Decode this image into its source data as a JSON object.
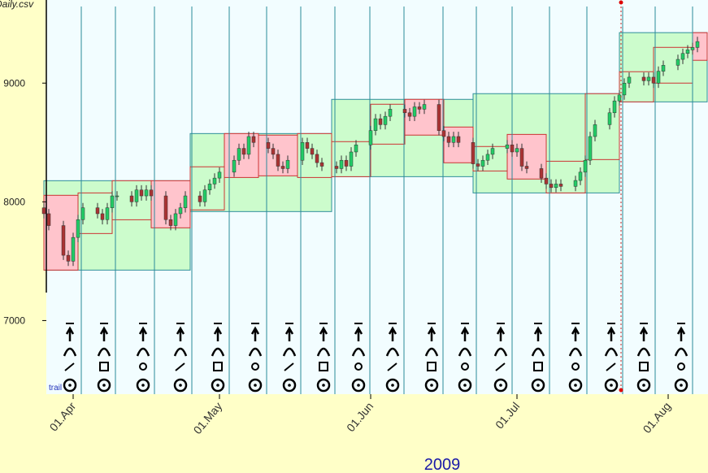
{
  "chart_data": {
    "type": "candlestick",
    "title": "Daily.csv",
    "annotation": "trail",
    "x_label": "2009",
    "xlim": [
      "2009-03-26",
      "2009-08-09"
    ],
    "ylim": [
      6380,
      9700
    ],
    "yticks": [
      7000,
      8000,
      9000
    ],
    "xticks": [
      {
        "value": "2009-04-01",
        "label": "01.Apr"
      },
      {
        "value": "2009-05-01",
        "label": "01.May"
      },
      {
        "value": "2009-06-01",
        "label": "01.Jun"
      },
      {
        "value": "2009-07-01",
        "label": "01.Jul"
      },
      {
        "value": "2009-08-01",
        "label": "01.Aug"
      }
    ],
    "up_color": "#22cc66",
    "down_color": "#aa3333",
    "x": [
      "2009-03-26",
      "2009-03-27",
      "2009-03-30",
      "2009-03-31",
      "2009-04-01",
      "2009-04-02",
      "2009-04-03",
      "2009-04-06",
      "2009-04-07",
      "2009-04-08",
      "2009-04-09",
      "2009-04-10",
      "2009-04-13",
      "2009-04-14",
      "2009-04-15",
      "2009-04-16",
      "2009-04-17",
      "2009-04-20",
      "2009-04-21",
      "2009-04-22",
      "2009-04-23",
      "2009-04-24",
      "2009-04-27",
      "2009-04-28",
      "2009-04-29",
      "2009-04-30",
      "2009-05-01",
      "2009-05-04",
      "2009-05-05",
      "2009-05-06",
      "2009-05-07",
      "2009-05-08",
      "2009-05-11",
      "2009-05-12",
      "2009-05-13",
      "2009-05-14",
      "2009-05-15",
      "2009-05-18",
      "2009-05-19",
      "2009-05-20",
      "2009-05-21",
      "2009-05-22",
      "2009-05-25",
      "2009-05-26",
      "2009-05-27",
      "2009-05-28",
      "2009-05-29",
      "2009-06-01",
      "2009-06-02",
      "2009-06-03",
      "2009-06-04",
      "2009-06-05",
      "2009-06-08",
      "2009-06-09",
      "2009-06-10",
      "2009-06-11",
      "2009-06-12",
      "2009-06-15",
      "2009-06-16",
      "2009-06-17",
      "2009-06-18",
      "2009-06-19",
      "2009-06-22",
      "2009-06-23",
      "2009-06-24",
      "2009-06-25",
      "2009-06-26",
      "2009-06-29",
      "2009-06-30",
      "2009-07-01",
      "2009-07-02",
      "2009-07-03",
      "2009-07-06",
      "2009-07-07",
      "2009-07-08",
      "2009-07-09",
      "2009-07-10",
      "2009-07-13",
      "2009-07-14",
      "2009-07-15",
      "2009-07-16",
      "2009-07-17",
      "2009-07-20",
      "2009-07-21",
      "2009-07-22",
      "2009-07-23",
      "2009-07-24",
      "2009-07-27",
      "2009-07-28",
      "2009-07-29",
      "2009-07-30",
      "2009-07-31",
      "2009-08-03",
      "2009-08-04",
      "2009-08-05",
      "2009-08-06",
      "2009-08-07"
    ],
    "open": [
      7950,
      7900,
      7800,
      7550,
      7500,
      7700,
      7850,
      7950,
      7900,
      7850,
      7950,
      8050,
      8050,
      8000,
      8100,
      8050,
      8100,
      8050,
      7850,
      7800,
      7900,
      7950,
      8050,
      8000,
      8100,
      8150,
      8200,
      8250,
      8350,
      8450,
      8400,
      8550,
      8500,
      8450,
      8400,
      8300,
      8280,
      8350,
      8500,
      8450,
      8400,
      8330,
      8300,
      8280,
      8350,
      8300,
      8420,
      8480,
      8600,
      8700,
      8650,
      8720,
      8780,
      8750,
      8720,
      8800,
      8780,
      8820,
      8600,
      8550,
      8500,
      8550,
      8500,
      8320,
      8300,
      8350,
      8400,
      8450,
      8480,
      8420,
      8450,
      8300,
      8280,
      8200,
      8150,
      8120,
      8150,
      8130,
      8180,
      8250,
      8350,
      8550,
      8650,
      8750,
      8850,
      8900,
      9000,
      9050,
      9020,
      9050,
      9000,
      9100,
      9150,
      9200,
      9250,
      9280,
      9300
    ],
    "high": [
      7990,
      7940,
      7840,
      7590,
      7740,
      7890,
      7990,
      7990,
      7940,
      7990,
      8090,
      8090,
      8090,
      8140,
      8140,
      8140,
      8140,
      8090,
      7890,
      7940,
      7990,
      8090,
      8090,
      8140,
      8190,
      8240,
      8290,
      8390,
      8490,
      8490,
      8590,
      8590,
      8540,
      8490,
      8440,
      8340,
      8390,
      8540,
      8540,
      8490,
      8440,
      8370,
      8340,
      8390,
      8390,
      8460,
      8520,
      8640,
      8740,
      8740,
      8760,
      8820,
      8820,
      8790,
      8840,
      8840,
      8860,
      8860,
      8640,
      8590,
      8590,
      8590,
      8540,
      8360,
      8390,
      8440,
      8490,
      8520,
      8520,
      8490,
      8490,
      8340,
      8320,
      8240,
      8190,
      8190,
      8190,
      8220,
      8290,
      8390,
      8590,
      8690,
      8790,
      8890,
      8940,
      9040,
      9090,
      9090,
      9090,
      9090,
      9140,
      9190,
      9240,
      9290,
      9320,
      9340,
      9390
    ],
    "low": [
      7860,
      7760,
      7510,
      7460,
      7460,
      7660,
      7810,
      7860,
      7810,
      7810,
      7910,
      8010,
      7960,
      7960,
      8010,
      8010,
      8010,
      7810,
      7760,
      7760,
      7860,
      7910,
      7960,
      7960,
      8060,
      8110,
      8160,
      8210,
      8310,
      8360,
      8360,
      8460,
      8410,
      8360,
      8260,
      8240,
      8240,
      8310,
      8410,
      8360,
      8290,
      8260,
      8240,
      8240,
      8260,
      8260,
      8380,
      8440,
      8560,
      8610,
      8610,
      8680,
      8710,
      8680,
      8680,
      8740,
      8740,
      8560,
      8510,
      8460,
      8460,
      8460,
      8280,
      8260,
      8260,
      8310,
      8360,
      8410,
      8380,
      8380,
      8260,
      8240,
      8160,
      8110,
      8080,
      8080,
      8090,
      8090,
      8140,
      8210,
      8310,
      8510,
      8610,
      8710,
      8810,
      8860,
      8960,
      8980,
      8980,
      8960,
      8960,
      9060,
      9110,
      9160,
      9210,
      9240,
      9260
    ],
    "close": [
      7900,
      7800,
      7550,
      7500,
      7700,
      7850,
      7950,
      7900,
      7850,
      7950,
      8050,
      8050,
      8000,
      8100,
      8050,
      8100,
      8050,
      7850,
      7800,
      7900,
      7950,
      8050,
      8000,
      8100,
      8150,
      8200,
      8250,
      8350,
      8450,
      8400,
      8550,
      8500,
      8450,
      8400,
      8300,
      8280,
      8350,
      8500,
      8450,
      8400,
      8330,
      8300,
      8280,
      8350,
      8300,
      8420,
      8480,
      8600,
      8700,
      8650,
      8720,
      8780,
      8750,
      8720,
      8800,
      8780,
      8820,
      8600,
      8550,
      8500,
      8550,
      8500,
      8320,
      8300,
      8350,
      8400,
      8450,
      8480,
      8420,
      8450,
      8300,
      8280,
      8200,
      8150,
      8120,
      8150,
      8130,
      8180,
      8250,
      8350,
      8550,
      8650,
      8750,
      8850,
      8900,
      9000,
      9050,
      9020,
      9050,
      9000,
      9100,
      9150,
      9200,
      9250,
      9280,
      9300,
      9350
    ],
    "ranges": [
      {
        "start": "2009-03-26",
        "end": "2009-04-25",
        "low": 7425,
        "high": 8178,
        "color": "#ccfccc"
      },
      {
        "start": "2009-04-25",
        "end": "2009-05-24",
        "low": 7918,
        "high": 8575,
        "color": "#ccfccc"
      },
      {
        "start": "2009-05-24",
        "end": "2009-06-22",
        "low": 8212,
        "high": 8863,
        "color": "#ccfccc"
      },
      {
        "start": "2009-06-22",
        "end": "2009-07-22",
        "low": 8075,
        "high": 8911,
        "color": "#ccfccc"
      },
      {
        "start": "2009-07-22",
        "end": "2009-08-09",
        "low": 8842,
        "high": 9425,
        "color": "#ccfccc"
      }
    ],
    "boxes": [
      {
        "start": "2009-03-26",
        "end": "2009-04-02",
        "low": 7425,
        "high": 8055,
        "color": "#ffc4cc"
      },
      {
        "start": "2009-04-02",
        "end": "2009-04-09",
        "low": 7733,
        "high": 8075,
        "color": "#ccfccc"
      },
      {
        "start": "2009-04-09",
        "end": "2009-04-17",
        "low": 7849,
        "high": 8178,
        "color": "#ccfccc"
      },
      {
        "start": "2009-04-17",
        "end": "2009-04-25",
        "low": 7781,
        "high": 8178,
        "color": "#ffc4cc"
      },
      {
        "start": "2009-04-25",
        "end": "2009-05-02",
        "low": 7932,
        "high": 8295,
        "color": "#ccfccc"
      },
      {
        "start": "2009-05-02",
        "end": "2009-05-09",
        "low": 8205,
        "high": 8575,
        "color": "#ffc4cc"
      },
      {
        "start": "2009-05-09",
        "end": "2009-05-17",
        "low": 8219,
        "high": 8562,
        "color": "#ffc4cc"
      },
      {
        "start": "2009-05-17",
        "end": "2009-05-24",
        "low": 8205,
        "high": 8575,
        "color": "#ccfccc"
      },
      {
        "start": "2009-05-24",
        "end": "2009-06-01",
        "low": 8212,
        "high": 8507,
        "color": "#ccfccc"
      },
      {
        "start": "2009-06-01",
        "end": "2009-06-08",
        "low": 8486,
        "high": 8822,
        "color": "#ccfccc"
      },
      {
        "start": "2009-06-08",
        "end": "2009-06-16",
        "low": 8562,
        "high": 8863,
        "color": "#ffc4cc"
      },
      {
        "start": "2009-06-16",
        "end": "2009-06-22",
        "low": 8329,
        "high": 8630,
        "color": "#ffc4cc"
      },
      {
        "start": "2009-06-22",
        "end": "2009-06-29",
        "low": 8260,
        "high": 8466,
        "color": "#ccfccc"
      },
      {
        "start": "2009-06-29",
        "end": "2009-07-07",
        "low": 8192,
        "high": 8568,
        "color": "#ffc4cc"
      },
      {
        "start": "2009-07-07",
        "end": "2009-07-15",
        "low": 8075,
        "high": 8342,
        "color": "#ccfccc"
      },
      {
        "start": "2009-07-15",
        "end": "2009-07-22",
        "low": 8356,
        "high": 8911,
        "color": "#ccfccc"
      },
      {
        "start": "2009-07-22",
        "end": "2009-07-29",
        "low": 8842,
        "high": 9096,
        "color": "#ccfccc"
      },
      {
        "start": "2009-07-29",
        "end": "2009-08-06",
        "low": 9000,
        "high": 9301,
        "color": "#ccfccc"
      },
      {
        "start": "2009-08-06",
        "end": "2009-08-09",
        "low": 9192,
        "high": 9425,
        "color": "#ffc4cc"
      }
    ]
  }
}
